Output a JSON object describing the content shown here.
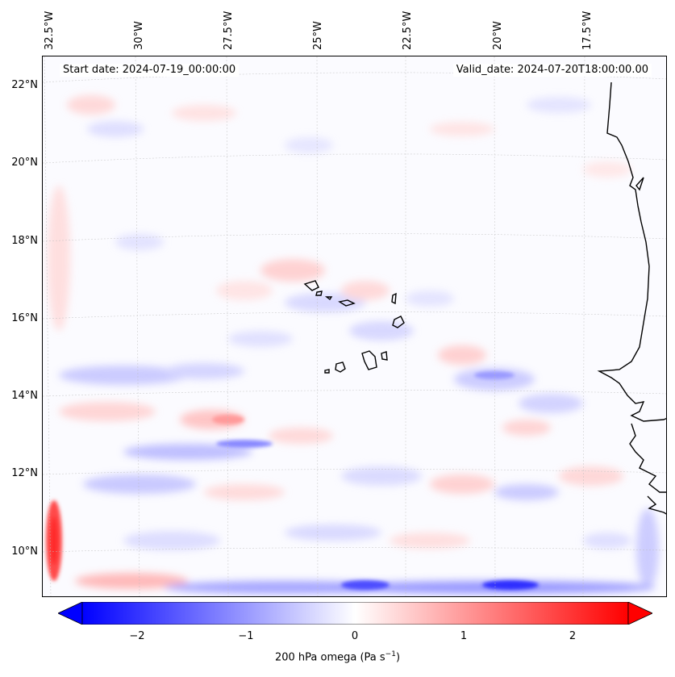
{
  "map": {
    "start_date": "Start date: 2024-07-19_00:00:00",
    "valid_date": "Valid_date: 2024-07-20T18:00:00.00",
    "lon_labels": [
      "32.5°W",
      "30°W",
      "27.5°W",
      "25°W",
      "22.5°W",
      "20°W",
      "17.5°W"
    ],
    "lat_labels": [
      "22°N",
      "20°N",
      "18°N",
      "16°N",
      "14°N",
      "12°N",
      "10°N"
    ],
    "region": "Cabo Verde and West African coast",
    "colormap": "bwr",
    "colors": {
      "min": "#0000ff",
      "mid": "#ffffff",
      "max": "#ff0000",
      "coast": "#000000"
    }
  },
  "colorbar": {
    "label_main": "200 hPa omega (Pa s",
    "label_exp": "−1",
    "label_close": ")",
    "ticks": [
      "−2",
      "−1",
      "0",
      "1",
      "2"
    ],
    "tick_values": [
      -2,
      -1,
      0,
      1,
      2
    ],
    "range": [
      -2.5,
      2.5
    ],
    "extend": "both"
  }
}
